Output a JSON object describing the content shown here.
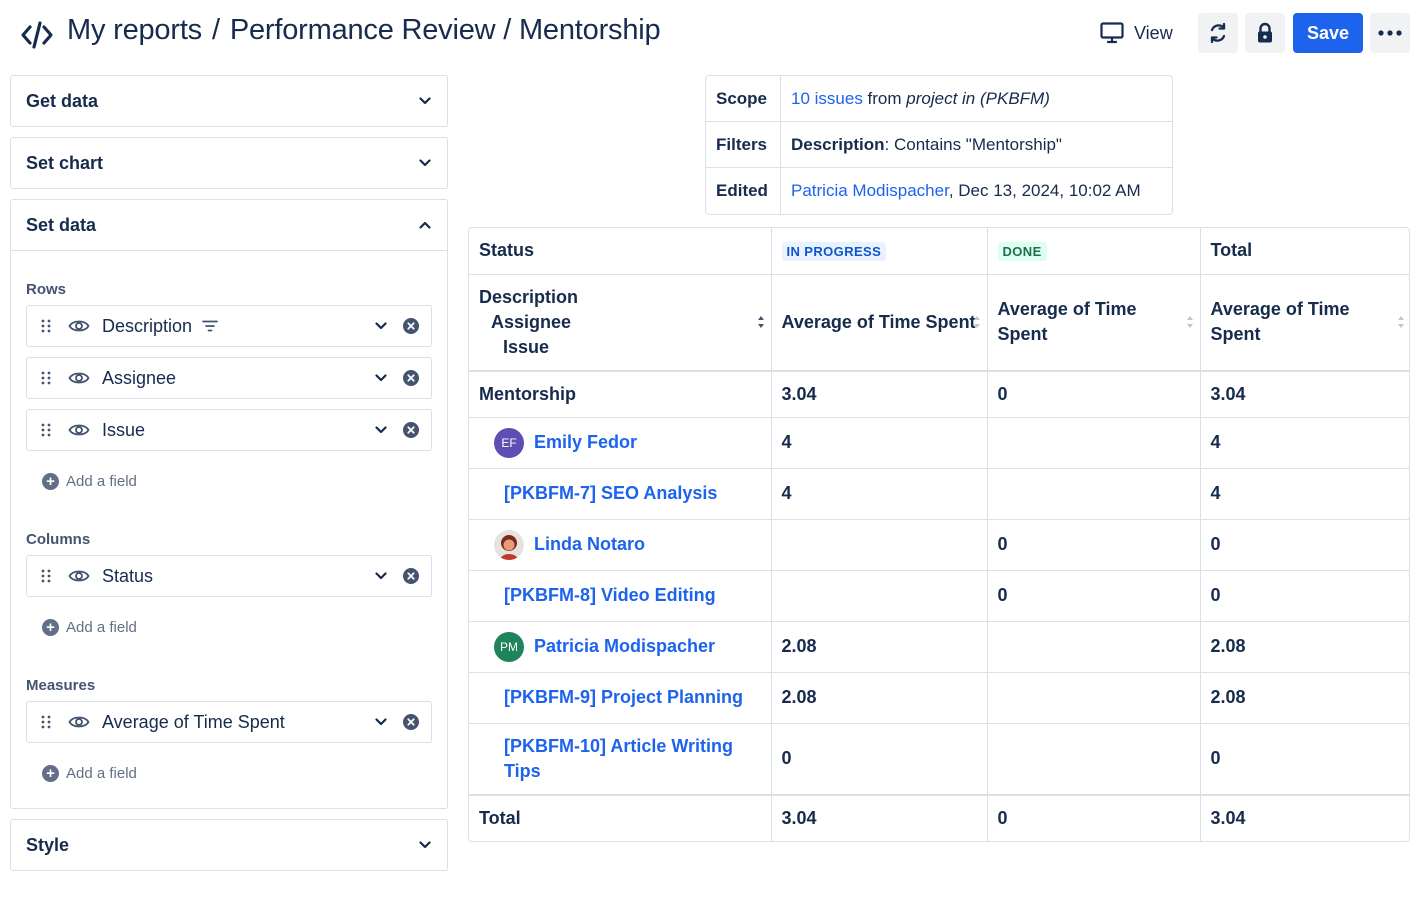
{
  "header": {
    "breadcrumb_root": "My reports",
    "breadcrumb_sep": "/",
    "breadcrumb_page": "Performance Review / Mentorship",
    "view_label": "View",
    "save_label": "Save"
  },
  "left_panel": {
    "get_data": "Get data",
    "set_chart": "Set chart",
    "set_data": "Set data",
    "style": "Style",
    "rows_label": "Rows",
    "rows": [
      "Description",
      "Assignee",
      "Issue"
    ],
    "columns_label": "Columns",
    "columns": [
      "Status"
    ],
    "measures_label": "Measures",
    "measures": [
      "Average of Time Spent"
    ],
    "add_field": "Add a field"
  },
  "scope": {
    "scope_label": "Scope",
    "scope_link": "10 issues",
    "scope_from": " from ",
    "scope_project": "project in (PKBFM)",
    "filters_label": "Filters",
    "filters_key": "Description",
    "filters_value": ": Contains \"Mentorship\"",
    "edited_label": "Edited",
    "edited_user": "Patricia Modispacher",
    "edited_date": ", Dec 13, 2024, 10:02 AM"
  },
  "pivot": {
    "status_header": "Status",
    "col_in_progress": "IN PROGRESS",
    "col_done": "DONE",
    "col_total": "Total",
    "row_dims": [
      "Description",
      "Assignee",
      "Issue"
    ],
    "measure_label": "Average of Time Spent",
    "rows": [
      {
        "label": "Mentorship",
        "in_progress": "3.04",
        "done": "0",
        "total": "3.04"
      },
      {
        "label": "Emily Fedor",
        "initials": "EF",
        "in_progress": "4",
        "done": "",
        "total": "4"
      },
      {
        "label": "[PKBFM-7] SEO Analysis",
        "in_progress": "4",
        "done": "",
        "total": "4"
      },
      {
        "label": "Linda Notaro",
        "in_progress": "",
        "done": "0",
        "total": "0"
      },
      {
        "label": "[PKBFM-8] Video Editing",
        "in_progress": "",
        "done": "0",
        "total": "0"
      },
      {
        "label": "Patricia Modispacher",
        "initials": "PM",
        "in_progress": "2.08",
        "done": "",
        "total": "2.08"
      },
      {
        "label": "[PKBFM-9] Project Planning",
        "in_progress": "2.08",
        "done": "",
        "total": "2.08"
      },
      {
        "label": "[PKBFM-10] Article Writing Tips",
        "in_progress": "0",
        "done": "",
        "total": "0"
      }
    ],
    "total_row": {
      "label": "Total",
      "in_progress": "3.04",
      "done": "0",
      "total": "3.04"
    }
  },
  "colors": {
    "accent": "#1d63ed",
    "avatar_ef": "#5e4db2",
    "avatar_pm": "#1f845a"
  }
}
